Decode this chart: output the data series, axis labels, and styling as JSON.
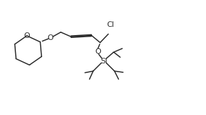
{
  "bg_color": "#ffffff",
  "line_color": "#2a2a2a",
  "line_width": 1.1,
  "text_color": "#2a2a2a",
  "font_size": 7.0,
  "fig_width": 2.98,
  "fig_height": 1.67,
  "dpi": 100,
  "xlim": [
    0,
    10
  ],
  "ylim": [
    0,
    5.6
  ]
}
